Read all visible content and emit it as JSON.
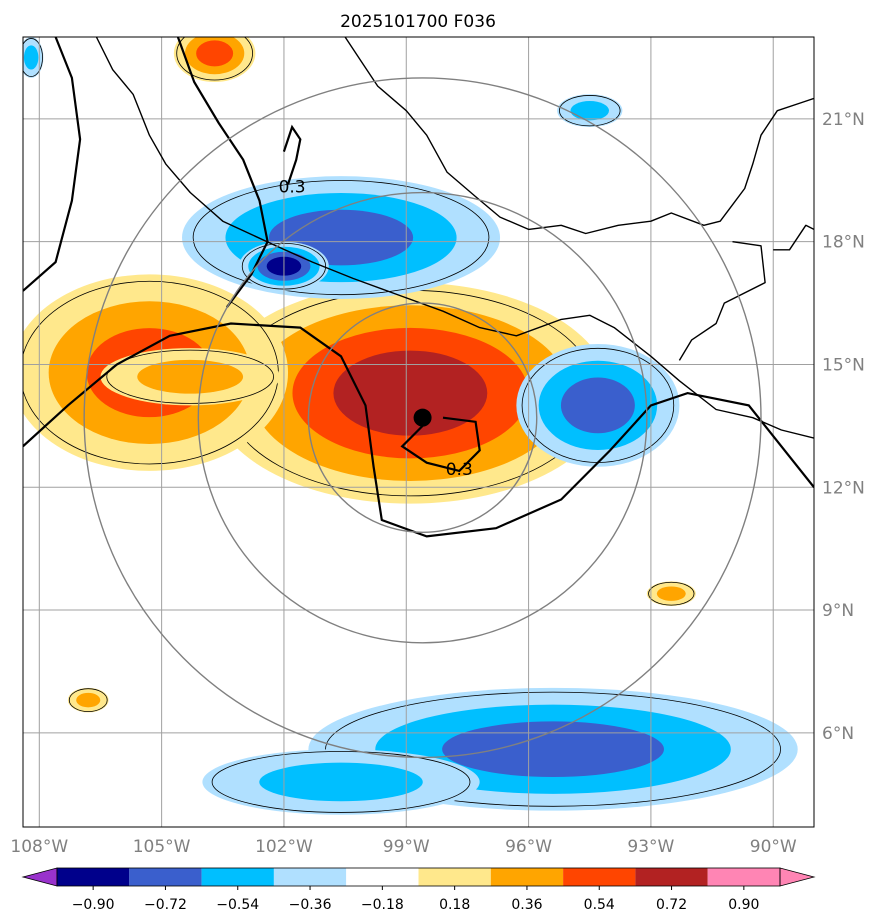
{
  "chart_data": {
    "type": "map",
    "title": "2025101700 F036",
    "projection": "geographic",
    "lon_range": [
      -108.4,
      -89.0
    ],
    "lat_range": [
      3.7,
      23.0
    ],
    "lon_ticks": [
      {
        "value": -108,
        "label": "108°W"
      },
      {
        "value": -105,
        "label": "105°W"
      },
      {
        "value": -102,
        "label": "102°W"
      },
      {
        "value": -99,
        "label": "99°W"
      },
      {
        "value": -96,
        "label": "96°W"
      },
      {
        "value": -93,
        "label": "93°W"
      },
      {
        "value": -90,
        "label": "90°W"
      }
    ],
    "lat_ticks": [
      {
        "value": 21,
        "label": "21°N"
      },
      {
        "value": 18,
        "label": "18°N"
      },
      {
        "value": 15,
        "label": "15°N"
      },
      {
        "value": 12,
        "label": "12°N"
      },
      {
        "value": 9,
        "label": "9°N"
      },
      {
        "value": 6,
        "label": "6°N"
      }
    ],
    "grid": true,
    "center": {
      "lon": -98.6,
      "lat": 13.7
    },
    "range_rings_deg": [
      2.8,
      5.5,
      8.3
    ],
    "contour_labels": [
      {
        "text": "0.3",
        "lon": -101.8,
        "lat": 19.2
      },
      {
        "text": "0.3",
        "lon": -97.7,
        "lat": 12.3
      }
    ],
    "colorbar": {
      "levels": [
        "−0.90",
        "−0.72",
        "−0.54",
        "−0.36",
        "−0.18",
        "0.18",
        "0.36",
        "0.54",
        "0.72",
        "0.90"
      ],
      "colors": [
        "#9932cc",
        "#00008b",
        "#3a5fcd",
        "#00bfff",
        "#b0e0ff",
        "#ffffff",
        "#ffe88c",
        "#ffa500",
        "#ff4500",
        "#b22222",
        "#ff85b4"
      ]
    },
    "anomalies": [
      {
        "lon": -98.9,
        "lat": 14.3,
        "rx": 4.9,
        "ry": 2.7,
        "levels": [
          0.18,
          0.36,
          0.54,
          0.72
        ]
      },
      {
        "lon": -105.3,
        "lat": 14.8,
        "rx": 3.4,
        "ry": 2.4,
        "levels": [
          0.18,
          0.36,
          0.54
        ]
      },
      {
        "lon": -104.3,
        "lat": 14.7,
        "rx": 2.2,
        "ry": 0.7,
        "levels": [
          0.18,
          0.36
        ]
      },
      {
        "lon": -100.6,
        "lat": 18.1,
        "rx": 3.9,
        "ry": 1.5,
        "levels": [
          -0.18,
          -0.36,
          -0.54
        ]
      },
      {
        "lon": -102.0,
        "lat": 17.4,
        "rx": 1.1,
        "ry": 0.6,
        "levels": [
          -0.18,
          -0.36,
          -0.54,
          -0.72
        ]
      },
      {
        "lon": -94.3,
        "lat": 14.0,
        "rx": 2.0,
        "ry": 1.5,
        "levels": [
          -0.18,
          -0.36,
          -0.54
        ]
      },
      {
        "lon": -94.5,
        "lat": 21.2,
        "rx": 0.8,
        "ry": 0.4,
        "levels": [
          -0.18,
          -0.36
        ]
      },
      {
        "lon": -95.4,
        "lat": 5.6,
        "rx": 6.0,
        "ry": 1.5,
        "levels": [
          -0.18,
          -0.36,
          -0.54
        ]
      },
      {
        "lon": -100.6,
        "lat": 4.8,
        "rx": 3.4,
        "ry": 0.8,
        "levels": [
          -0.18,
          -0.36
        ]
      },
      {
        "lon": -103.7,
        "lat": 22.6,
        "rx": 1.0,
        "ry": 0.7,
        "levels": [
          0.18,
          0.36,
          0.54
        ]
      },
      {
        "lon": -92.5,
        "lat": 9.4,
        "rx": 0.6,
        "ry": 0.3,
        "levels": [
          0.18,
          0.36
        ]
      },
      {
        "lon": -106.8,
        "lat": 6.8,
        "rx": 0.5,
        "ry": 0.3,
        "levels": [
          0.18,
          0.36
        ]
      },
      {
        "lon": -108.2,
        "lat": 22.5,
        "rx": 0.3,
        "ry": 0.5,
        "levels": [
          -0.18,
          -0.36
        ]
      }
    ]
  }
}
